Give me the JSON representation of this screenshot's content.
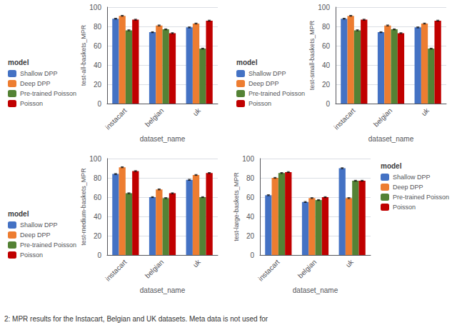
{
  "chart_data": [
    {
      "type": "bar",
      "xlabel": "dataset_name",
      "ylabel": "test-all-baskets_MPR",
      "legend_title": "model",
      "legend": "lower left",
      "grid": true,
      "categories": [
        "instacart",
        "belgian",
        "uk"
      ],
      "ylim": [
        0,
        100
      ],
      "yticks": [
        0,
        20,
        40,
        60,
        80,
        100
      ],
      "series": [
        {
          "name": "Shallow DPP",
          "color": "#4472C4",
          "values": [
            88,
            74,
            79
          ],
          "errors": [
            0.5,
            0.5,
            0.5
          ]
        },
        {
          "name": "Deep DPP",
          "color": "#ED7D31",
          "values": [
            91,
            81,
            83
          ],
          "errors": [
            0.5,
            0.5,
            0.5
          ]
        },
        {
          "name": "Pre-trained Poisson",
          "color": "#548235",
          "values": [
            76,
            77,
            57
          ],
          "errors": [
            0.5,
            0.5,
            0.5
          ]
        },
        {
          "name": "Poisson",
          "color": "#C00000",
          "values": [
            87,
            73,
            86
          ],
          "errors": [
            0.5,
            0.5,
            0.5
          ]
        }
      ]
    },
    {
      "type": "bar",
      "xlabel": "dataset_name",
      "ylabel": "test-small-baskets_MPR",
      "legend_title": "model",
      "legend": "lower left",
      "grid": true,
      "categories": [
        "instacart",
        "belgian",
        "uk"
      ],
      "ylim": [
        0,
        100
      ],
      "yticks": [
        0,
        20,
        40,
        60,
        80,
        100
      ],
      "series": [
        {
          "name": "Shallow DPP",
          "color": "#4472C4",
          "values": [
            88,
            74,
            79
          ],
          "errors": [
            0.5,
            0.5,
            0.5
          ]
        },
        {
          "name": "Deep DPP",
          "color": "#ED7D31",
          "values": [
            91,
            81,
            83
          ],
          "errors": [
            0.5,
            0.5,
            0.5
          ]
        },
        {
          "name": "Pre-trained Poisson",
          "color": "#548235",
          "values": [
            76,
            77,
            57
          ],
          "errors": [
            0.5,
            0.5,
            0.5
          ]
        },
        {
          "name": "Poisson",
          "color": "#C00000",
          "values": [
            87,
            73,
            86
          ],
          "errors": [
            0.5,
            0.5,
            0.5
          ]
        }
      ]
    },
    {
      "type": "bar",
      "xlabel": "dataset_name",
      "ylabel": "test-medium-baskets_MPR",
      "legend_title": "model",
      "legend": "lower left",
      "grid": true,
      "categories": [
        "instacart",
        "belgian",
        "uk"
      ],
      "ylim": [
        0,
        100
      ],
      "yticks": [
        0,
        20,
        40,
        60,
        80,
        100
      ],
      "series": [
        {
          "name": "Shallow DPP",
          "color": "#4472C4",
          "values": [
            84,
            60,
            78
          ],
          "errors": [
            0.5,
            0.5,
            0.5
          ]
        },
        {
          "name": "Deep DPP",
          "color": "#ED7D31",
          "values": [
            91,
            68,
            83
          ],
          "errors": [
            0.5,
            0.5,
            0.5
          ]
        },
        {
          "name": "Pre-trained Poisson",
          "color": "#548235",
          "values": [
            64,
            59,
            60
          ],
          "errors": [
            0.5,
            0.5,
            0.5
          ]
        },
        {
          "name": "Poisson",
          "color": "#C00000",
          "values": [
            87,
            64,
            85
          ],
          "errors": [
            0.5,
            0.5,
            0.5
          ]
        }
      ]
    },
    {
      "type": "bar",
      "xlabel": "dataset_name",
      "ylabel": "test-large-baskets_MPR",
      "legend_title": "model",
      "legend": "upper right",
      "grid": true,
      "categories": [
        "instacart",
        "belgian",
        "uk"
      ],
      "ylim": [
        0,
        100
      ],
      "yticks": [
        0,
        20,
        40,
        60,
        80,
        100
      ],
      "series": [
        {
          "name": "Shallow DPP",
          "color": "#4472C4",
          "values": [
            62,
            55,
            90
          ],
          "errors": [
            0.5,
            0.5,
            0.5
          ]
        },
        {
          "name": "Deep DPP",
          "color": "#ED7D31",
          "values": [
            80,
            59,
            59
          ],
          "errors": [
            0.5,
            0.5,
            0.5
          ]
        },
        {
          "name": "Pre-trained Poisson",
          "color": "#548235",
          "values": [
            85,
            57,
            77
          ],
          "errors": [
            0.5,
            0.5,
            0.5
          ]
        },
        {
          "name": "Poisson",
          "color": "#C00000",
          "values": [
            86,
            60,
            77
          ],
          "errors": [
            0.5,
            0.5,
            0.5
          ]
        }
      ]
    }
  ],
  "caption": "2: MPR results for the Instacart, Belgian and UK datasets. Meta data is not used for"
}
